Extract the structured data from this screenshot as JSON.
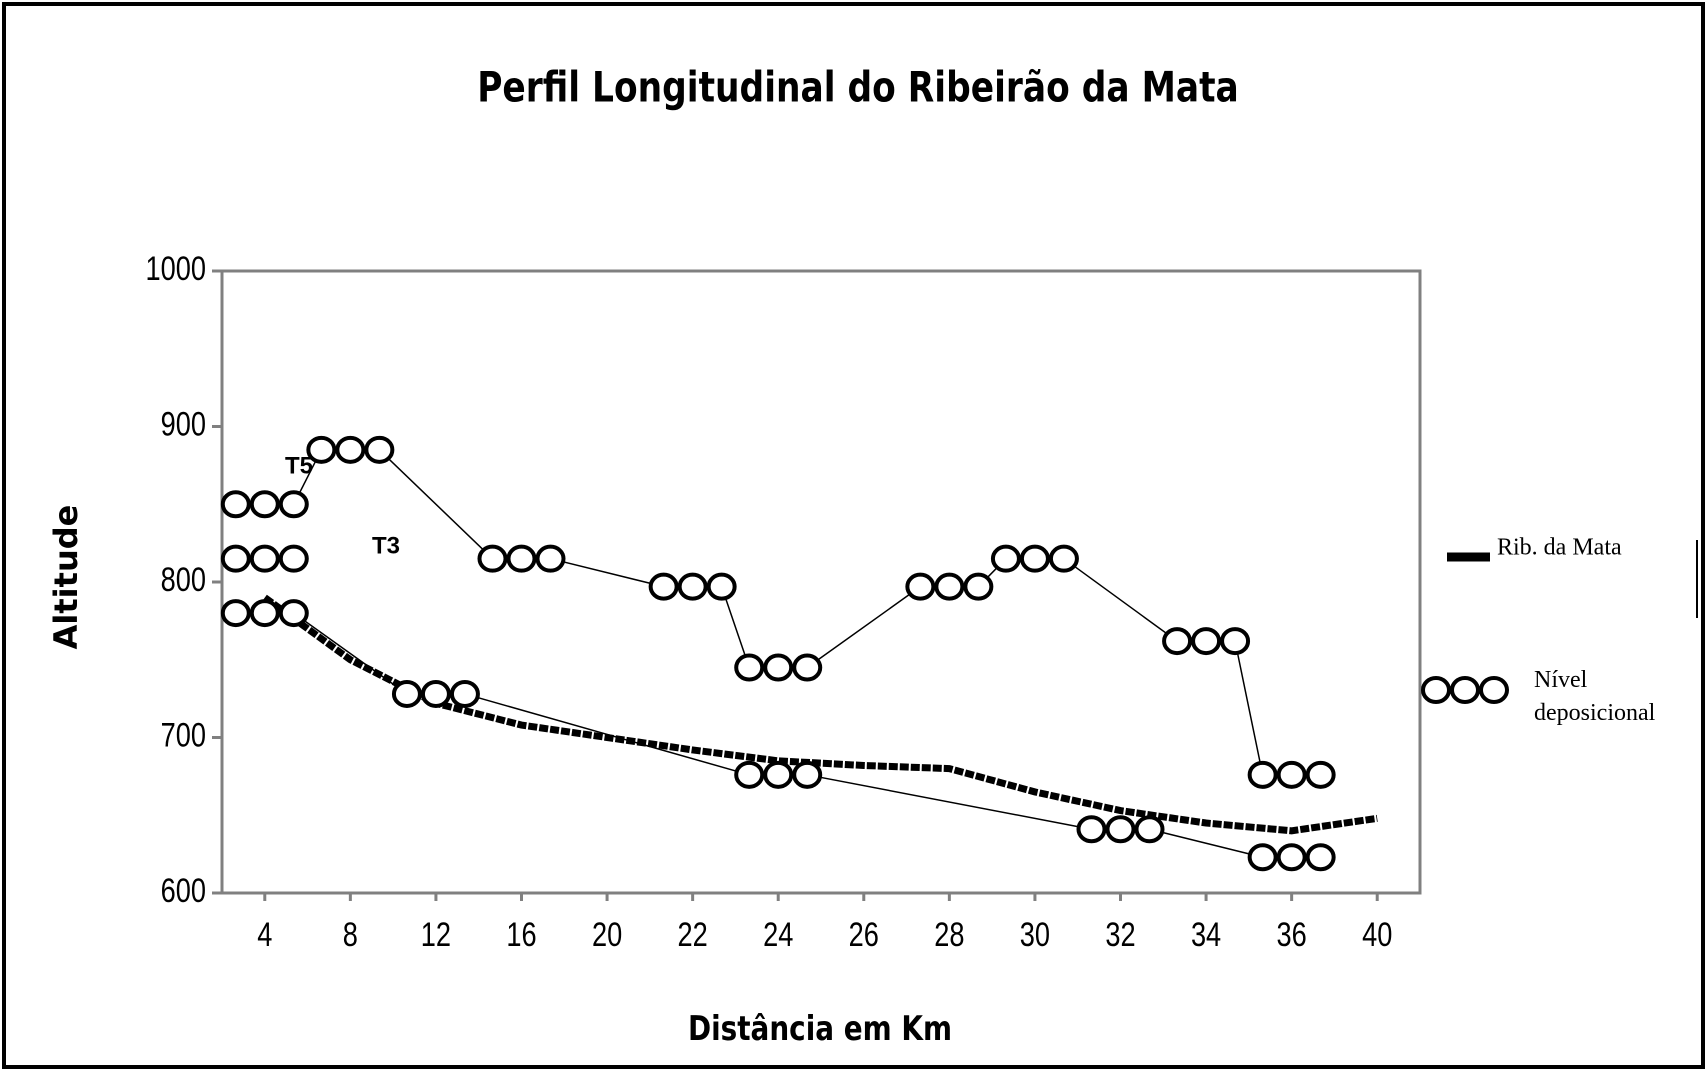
{
  "chart_data": {
    "type": "line",
    "title": "Perfil Longitudinal do Ribeirão da Mata",
    "xlabel": "Distância em Km",
    "ylabel": "Altitude",
    "categories": [
      "4",
      "8",
      "12",
      "16",
      "20",
      "22",
      "24",
      "26",
      "28",
      "30",
      "32",
      "34",
      "36",
      "40"
    ],
    "ylim": [
      600,
      1000
    ],
    "yticks": [
      600,
      700,
      800,
      900,
      1000
    ],
    "series": [
      {
        "name": "Rib. da Mata",
        "color": "#000000",
        "style": "thick",
        "values": [
          790,
          750,
          722,
          708,
          700,
          692,
          685,
          682,
          680,
          665,
          653,
          645,
          640,
          648
        ]
      },
      {
        "name": "Nível deposicional",
        "color": "#000000",
        "style": "circles",
        "values": [
          850,
          885,
          null,
          815,
          null,
          797,
          745,
          null,
          797,
          815,
          null,
          762,
          676,
          null
        ]
      },
      {
        "color": "#000000",
        "style": "circles",
        "values": [
          780,
          null,
          728,
          null,
          null,
          null,
          676,
          null,
          null,
          null,
          641,
          null,
          623,
          null
        ]
      },
      {
        "color": "#000000",
        "style": "circles",
        "values": [
          815,
          null,
          null,
          null,
          null,
          null,
          null,
          null,
          null,
          null,
          null,
          null,
          null,
          null
        ]
      }
    ],
    "annotations": [
      "T5",
      "T3"
    ]
  }
}
